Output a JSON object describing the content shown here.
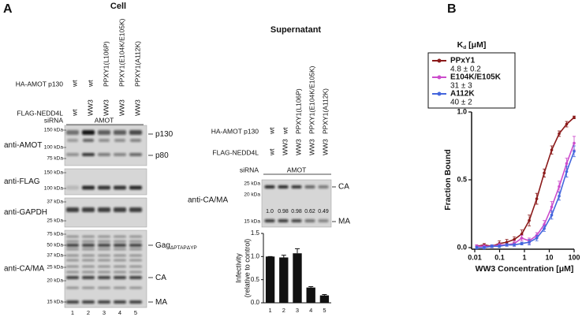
{
  "panel_labels": [
    "A",
    "B"
  ],
  "cell": {
    "title": "Cell",
    "rows": [
      {
        "label": "HA-AMOT p130",
        "values": [
          "wt",
          "wt",
          "PPXY1(L106P)",
          "PPXY1(E104K/E105K)",
          "PPXY1(A112K)"
        ]
      },
      {
        "label": "FLAG-NEDD4L",
        "values": [
          "wt",
          "WW3",
          "WW3",
          "WW3",
          "WW3"
        ]
      }
    ],
    "sirna": {
      "label": "siRNA",
      "value": "AMOT"
    },
    "blots": [
      {
        "antibody": "anti-AMOT",
        "markers": [
          "150 kDa",
          "100 kDa",
          "75 kDa"
        ],
        "bands": [
          {
            "text": "p130"
          },
          {
            "text": "p80"
          }
        ]
      },
      {
        "antibody": "anti-FLAG",
        "markers": [
          "150 kDa",
          "100 kDa"
        ],
        "bands": []
      },
      {
        "antibody": "anti-GAPDH",
        "markers": [
          "37 kDa",
          "25 kDa"
        ],
        "bands": []
      },
      {
        "antibody": "anti-CA/MA",
        "markers": [
          "75 kDa",
          "50 kDa",
          "37 kDa",
          "25 kDa",
          "20 kDa",
          "15 kDa"
        ],
        "bands": [
          {
            "text": "Gag",
            "subscript": "ΔPTAPΔYP"
          },
          {
            "text": "CA"
          },
          {
            "text": "MA"
          }
        ]
      }
    ],
    "lanes": [
      "1",
      "2",
      "3",
      "4",
      "5"
    ]
  },
  "supernatant": {
    "title": "Supernatant",
    "rows": [
      {
        "label": "HA-AMOT p130",
        "values": [
          "wt",
          "wt",
          "PPXY1(L106P)",
          "PPXY1(E104K/E105K)",
          "PPXY1(A112K)"
        ]
      },
      {
        "label": "FLAG-NEDD4L",
        "values": [
          "wt",
          "WW3",
          "WW3",
          "WW3",
          "WW3"
        ]
      }
    ],
    "sirna": {
      "label": "siRNA",
      "value": "AMOT"
    },
    "blot": {
      "antibody": "anti-CA/MA",
      "markers": [
        "25 kDa",
        "20 kDa",
        "15 kDa"
      ],
      "bands": [
        "CA",
        "MA"
      ],
      "quantities": [
        "1.0",
        "0.98",
        "0.98",
        "0.62",
        "0.49"
      ]
    }
  },
  "chart_data": [
    {
      "type": "bar",
      "ylabel": [
        "Infectivity",
        "(relative to control)"
      ],
      "categories": [
        "1",
        "2",
        "3",
        "4",
        "5"
      ],
      "values": [
        1.0,
        0.98,
        1.07,
        0.33,
        0.16
      ],
      "errors": [
        0,
        0.05,
        0.1,
        0.02,
        0.02
      ],
      "color": "#111111",
      "ylim": [
        0,
        1.5
      ],
      "yticks": [
        {
          "value": 0,
          "label": "0.0"
        },
        0.5,
        {
          "value": 1,
          "label": "1.0"
        },
        1.5
      ]
    },
    {
      "type": "line",
      "xlabel": "WW3 Concentration [μM]",
      "ylabel": "Fraction Bound",
      "xscale": "log",
      "legend_title": {
        "text": "K",
        "subscript": "d",
        "suffix": " [μM]"
      },
      "x": [
        0.012,
        0.024,
        0.049,
        0.098,
        0.195,
        0.39,
        0.78,
        1.56,
        3.13,
        6.25,
        12.5,
        25,
        50,
        100
      ],
      "series": [
        {
          "name": "PPxY1",
          "annotation": "4.8 ± 0.2",
          "color": "#8b1a1a",
          "values": [
            0.01,
            0.02,
            0.01,
            0.03,
            0.04,
            0.06,
            0.1,
            0.2,
            0.36,
            0.55,
            0.72,
            0.84,
            0.91,
            0.96
          ],
          "errors": [
            0.01,
            0.01,
            0.01,
            0.02,
            0.02,
            0.02,
            0.03,
            0.04,
            0.04,
            0.03,
            0.03,
            0.02,
            0.02,
            0.01
          ]
        },
        {
          "name": "E104K/E105K",
          "annotation": "31 ± 3",
          "color": "#cc4ccc",
          "values": [
            0.01,
            0.01,
            0.01,
            0.02,
            0.02,
            0.03,
            0.07,
            0.05,
            0.09,
            0.17,
            0.3,
            0.45,
            0.62,
            0.77
          ],
          "errors": [
            0.01,
            0.01,
            0.01,
            0.01,
            0.01,
            0.02,
            0.02,
            0.02,
            0.02,
            0.03,
            0.04,
            0.04,
            0.04,
            0.05
          ]
        },
        {
          "name": "A112K",
          "annotation": "40 ± 2",
          "color": "#4466dd",
          "values": [
            0,
            0,
            0.01,
            0.01,
            0.02,
            0.02,
            0.03,
            0.04,
            0.07,
            0.14,
            0.24,
            0.38,
            0.56,
            0.71
          ],
          "errors": [
            0.01,
            0.01,
            0.01,
            0.01,
            0.01,
            0.01,
            0.01,
            0.02,
            0.02,
            0.02,
            0.03,
            0.03,
            0.04,
            0.04
          ]
        }
      ],
      "xlim": [
        0.01,
        100
      ],
      "xticks": [
        0.01,
        0.1,
        1,
        10,
        100
      ],
      "ylim": [
        0,
        1
      ],
      "yticks": [
        {
          "value": 0,
          "label": "0.0"
        },
        0.5,
        {
          "value": 1,
          "label": "1.0"
        }
      ]
    }
  ]
}
